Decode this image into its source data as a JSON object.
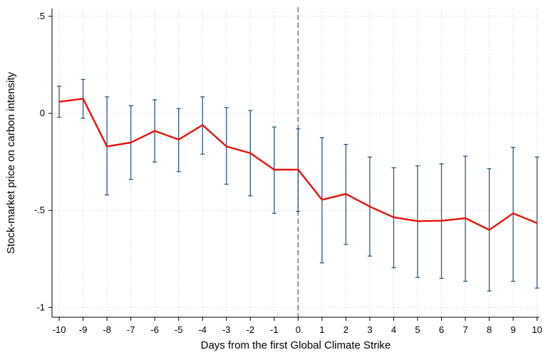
{
  "chart_data": {
    "type": "line",
    "title": "",
    "xlabel": "Days from the first Global Climate Strike",
    "ylabel": "Stock-market price on carbon intensity",
    "x": [
      -10,
      -9,
      -8,
      -7,
      -6,
      -5,
      -4,
      -3,
      -2,
      -1,
      0,
      1,
      2,
      3,
      4,
      5,
      6,
      7,
      8,
      9,
      10
    ],
    "xtick_labels": [
      "-10",
      "-9",
      "-8",
      "-7",
      "-6",
      "-5",
      "-4",
      "-3",
      "-2",
      "-1",
      "0",
      "1",
      "2",
      "3",
      "4",
      "5",
      "6",
      "7",
      "8",
      "9",
      "10"
    ],
    "yticks": [
      0.5,
      0,
      -0.5,
      -1
    ],
    "ytick_labels": [
      ".5",
      "0",
      "-.5",
      "-1"
    ],
    "xlim": [
      -10.3,
      10.1
    ],
    "ylim": [
      -1.05,
      0.54
    ],
    "grid": true,
    "event_line_x": 0,
    "series": [
      {
        "values": [
          0.06,
          0.075,
          -0.17,
          -0.15,
          -0.09,
          -0.135,
          -0.06,
          -0.17,
          -0.205,
          -0.29,
          -0.29,
          -0.445,
          -0.415,
          -0.48,
          -0.535,
          -0.555,
          -0.553,
          -0.54,
          -0.6,
          -0.515,
          -0.565
        ],
        "ci_low": [
          -0.02,
          -0.025,
          -0.42,
          -0.34,
          -0.25,
          -0.3,
          -0.21,
          -0.365,
          -0.425,
          -0.515,
          -0.505,
          -0.77,
          -0.675,
          -0.735,
          -0.795,
          -0.845,
          -0.85,
          -0.865,
          -0.915,
          -0.865,
          -0.9
        ],
        "ci_high": [
          0.14,
          0.175,
          0.085,
          0.04,
          0.07,
          0.025,
          0.085,
          0.03,
          0.015,
          -0.07,
          -0.08,
          -0.125,
          -0.16,
          -0.225,
          -0.28,
          -0.27,
          -0.26,
          -0.22,
          -0.285,
          -0.175,
          -0.225
        ]
      }
    ],
    "colors": {
      "line": "#e8120c",
      "errorbar": "#2b5a83",
      "grid": "#d4d4d4",
      "event_line": "#7a7a7a"
    }
  }
}
